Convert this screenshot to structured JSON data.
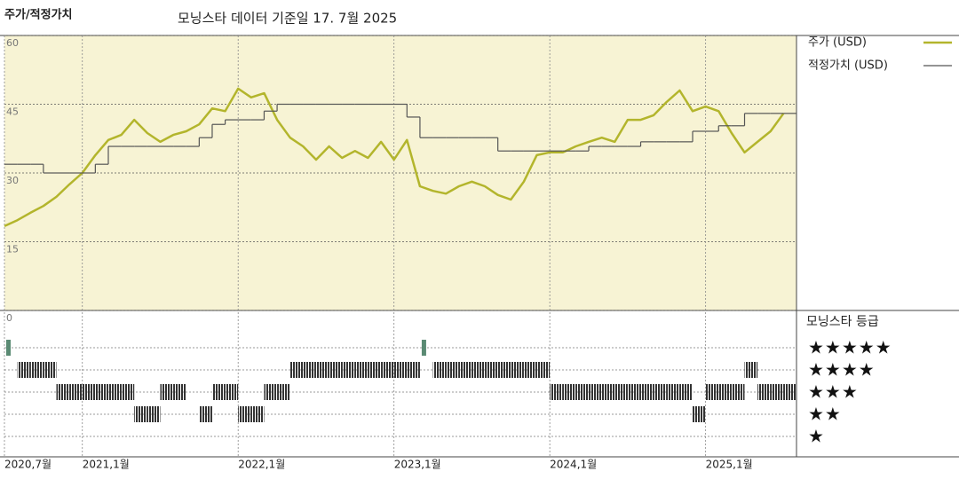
{
  "chart_data": {
    "type": "line",
    "label": "주가/적정가치",
    "title": "모닝스타 데이터 기준일 17. 7월 2025",
    "x": [
      "2020-07",
      "2020-08",
      "2020-09",
      "2020-10",
      "2020-11",
      "2020-12",
      "2021-01",
      "2021-02",
      "2021-03",
      "2021-04",
      "2021-05",
      "2021-06",
      "2021-07",
      "2021-08",
      "2021-09",
      "2021-10",
      "2021-11",
      "2021-12",
      "2022-01",
      "2022-02",
      "2022-03",
      "2022-04",
      "2022-05",
      "2022-06",
      "2022-07",
      "2022-08",
      "2022-09",
      "2022-10",
      "2022-11",
      "2022-12",
      "2023-01",
      "2023-02",
      "2023-03",
      "2023-04",
      "2023-05",
      "2023-06",
      "2023-07",
      "2023-08",
      "2023-09",
      "2023-10",
      "2023-11",
      "2023-12",
      "2024-01",
      "2024-02",
      "2024-03",
      "2024-04",
      "2024-05",
      "2024-06",
      "2024-07",
      "2024-08",
      "2024-09",
      "2024-10",
      "2024-11",
      "2024-12",
      "2025-01",
      "2025-02",
      "2025-03",
      "2025-04",
      "2025-05",
      "2025-06",
      "2025-07"
    ],
    "xlim": [
      "2020-07",
      "2025-08"
    ],
    "xticks": [
      {
        "value": "2020-07",
        "label": "2020,7월"
      },
      {
        "value": "2021-01",
        "label": "2021,1월"
      },
      {
        "value": "2022-01",
        "label": "2022,1월"
      },
      {
        "value": "2023-01",
        "label": "2023,1월"
      },
      {
        "value": "2024-01",
        "label": "2024,1월"
      },
      {
        "value": "2025-01",
        "label": "2025,1월"
      }
    ],
    "ylim": [
      0,
      60
    ],
    "yticks": [
      0,
      15,
      30,
      45,
      60
    ],
    "series": [
      {
        "name": "주가 (USD)",
        "color": "#b3b52c",
        "style": "line",
        "values": [
          18.4,
          19.7,
          21.3,
          22.8,
          24.8,
          27.5,
          30,
          33.9,
          37.2,
          38.3,
          41.6,
          38.7,
          36.8,
          38.3,
          39.1,
          40.6,
          44.1,
          43.5,
          48.4,
          46.5,
          47.4,
          41.6,
          37.7,
          35.8,
          32.9,
          35.8,
          33.3,
          34.8,
          33.3,
          36.8,
          32.9,
          37.2,
          27.1,
          26.1,
          25.5,
          27.1,
          28.1,
          27.1,
          25.2,
          24.2,
          28.1,
          33.9,
          34.5,
          34.5,
          35.8,
          36.8,
          37.7,
          36.8,
          41.6,
          41.6,
          42.6,
          45.5,
          48,
          43.5,
          44.5,
          43.5,
          38.7,
          34.5,
          36.8,
          39.1,
          43
        ]
      },
      {
        "name": "적정가치 (USD)",
        "color": "#555555",
        "style": "step",
        "values": [
          31.9,
          31.9,
          31.9,
          30,
          30,
          30,
          30,
          31.9,
          35.8,
          35.8,
          35.8,
          35.8,
          35.8,
          35.8,
          35.8,
          37.7,
          40.6,
          41.6,
          41.6,
          41.6,
          43.5,
          45,
          45,
          45,
          45,
          45,
          45,
          45,
          45,
          45,
          45,
          42.2,
          37.7,
          37.7,
          37.7,
          37.7,
          37.7,
          37.7,
          34.8,
          34.8,
          34.8,
          34.8,
          34.8,
          34.8,
          34.8,
          35.8,
          35.8,
          35.8,
          35.8,
          36.8,
          36.8,
          36.8,
          36.8,
          39.1,
          39.1,
          40.3,
          40.3,
          43,
          43,
          43,
          43
        ]
      }
    ],
    "ratings": {
      "title": "모닝스타 등급",
      "levels": [
        {
          "value": 5,
          "label": "★★★★★"
        },
        {
          "value": 4,
          "label": "★★★★"
        },
        {
          "value": 3,
          "label": "★★★"
        },
        {
          "value": 2,
          "label": "★★"
        },
        {
          "value": 1,
          "label": "★"
        }
      ],
      "top_color": "#5a8a73",
      "color": "#333333",
      "values": [
        5,
        4,
        4,
        4,
        3,
        3,
        3,
        3,
        3,
        3,
        2,
        2,
        3,
        3,
        null,
        2,
        3,
        3,
        2,
        2,
        3,
        3,
        4,
        4,
        4,
        4,
        4,
        4,
        4,
        4,
        4,
        4,
        5,
        4,
        4,
        4,
        4,
        4,
        4,
        4,
        4,
        4,
        3,
        3,
        3,
        3,
        3,
        3,
        3,
        3,
        3,
        3,
        3,
        2,
        3,
        3,
        3,
        4,
        3,
        3,
        3
      ]
    }
  }
}
